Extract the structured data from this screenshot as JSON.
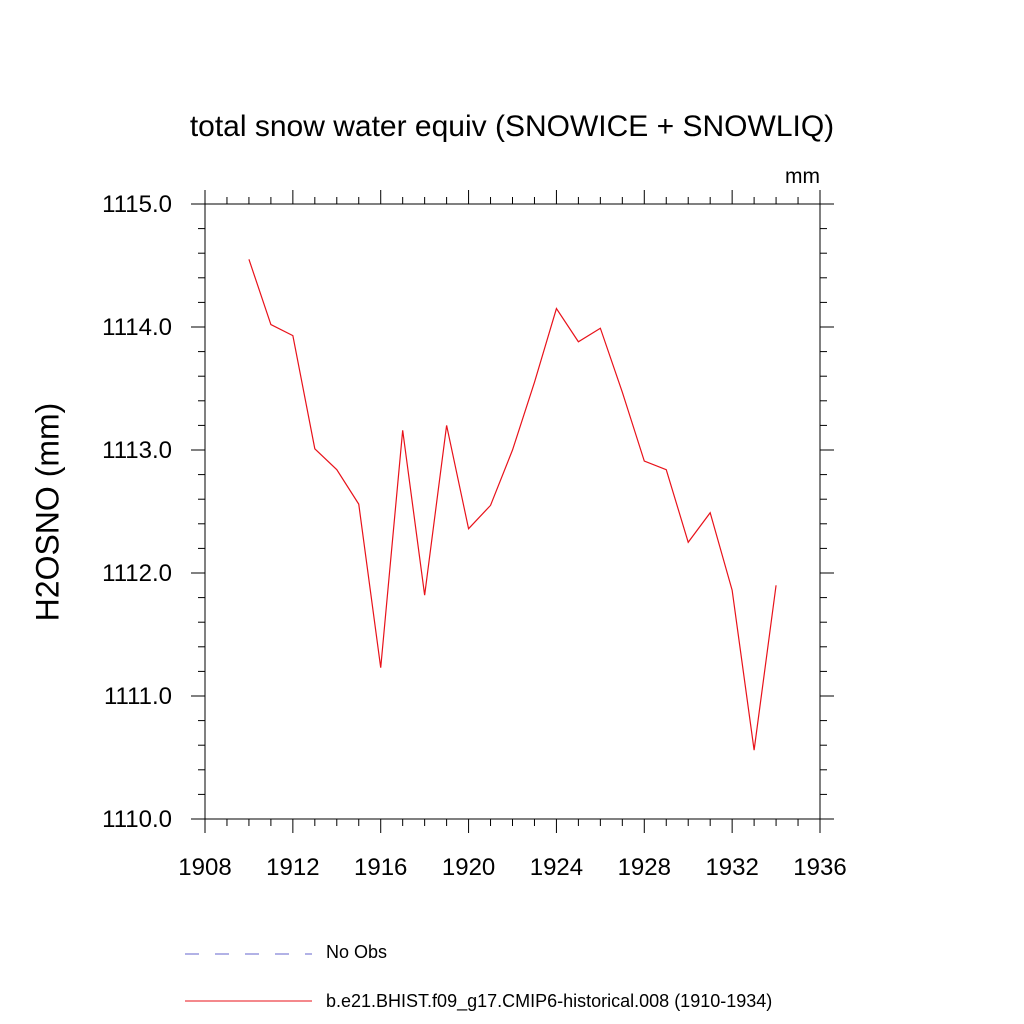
{
  "chart_data": {
    "type": "line",
    "title": "total snow water equiv (SNOWICE + SNOWLIQ)",
    "units_label": "mm",
    "ylabel": "H2OSNO  (mm)",
    "xlabel": "",
    "xlim": [
      1908,
      1936
    ],
    "ylim": [
      1110.0,
      1115.0
    ],
    "x_ticks": [
      1908,
      1912,
      1916,
      1920,
      1924,
      1928,
      1932,
      1936
    ],
    "y_ticks": [
      "1110.0",
      "1111.0",
      "1112.0",
      "1113.0",
      "1114.0",
      "1115.0"
    ],
    "grid": false,
    "legend_position": "bottom",
    "series": [
      {
        "name": "b.e21.BHIST.f09_g17.CMIP6-historical.008 (1910-1934)",
        "color": "#e8121a",
        "style": "solid",
        "x": [
          1910,
          1911,
          1912,
          1913,
          1914,
          1915,
          1916,
          1917,
          1918,
          1919,
          1920,
          1921,
          1922,
          1923,
          1924,
          1925,
          1926,
          1927,
          1928,
          1929,
          1930,
          1931,
          1932,
          1933,
          1934
        ],
        "y": [
          1114.55,
          1114.02,
          1113.93,
          1113.01,
          1112.84,
          1112.56,
          1111.23,
          1113.16,
          1111.82,
          1113.2,
          1112.36,
          1112.55,
          1113.0,
          1113.55,
          1114.15,
          1113.88,
          1113.99,
          1113.47,
          1112.91,
          1112.84,
          1112.25,
          1112.49,
          1111.86,
          1110.56,
          1111.9
        ]
      },
      {
        "name": "No Obs",
        "color": "#6666cc",
        "style": "dashed",
        "x": [],
        "y": []
      }
    ]
  }
}
